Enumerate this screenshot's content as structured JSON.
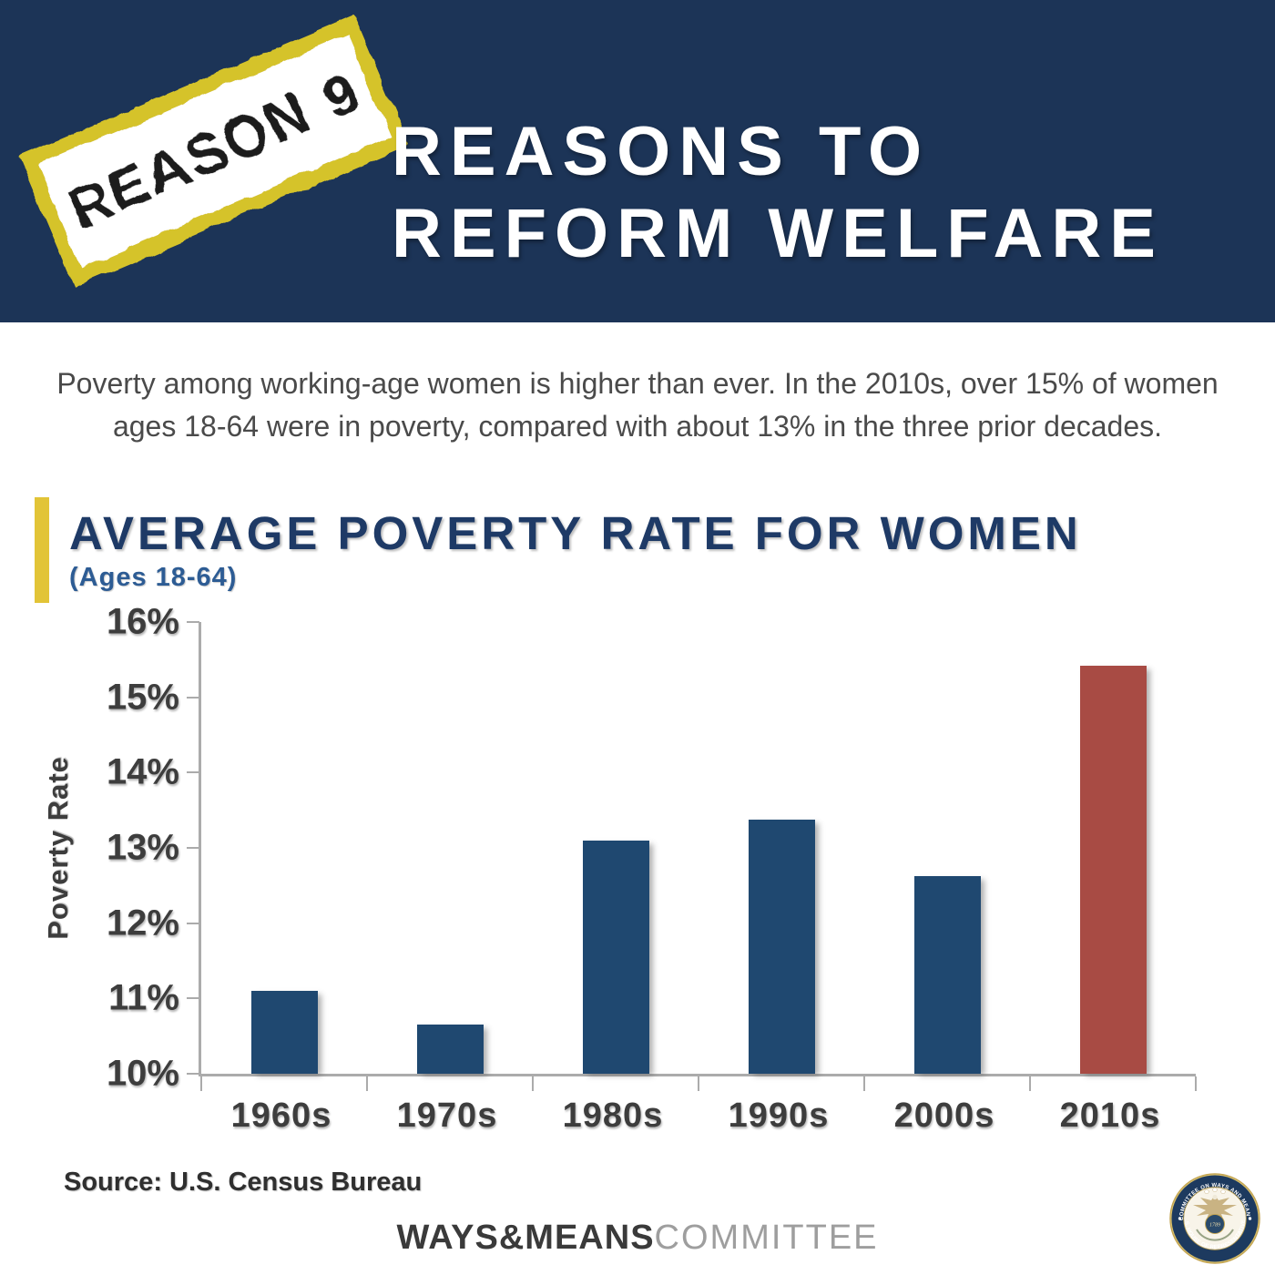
{
  "header": {
    "stamp_text": "REASON 9",
    "title_line1": "REASONS TO",
    "title_line2": "REFORM WELFARE"
  },
  "intro": {
    "text": "Poverty among working-age women is higher than ever. In the 2010s, over 15% of women ages 18-64 were in poverty, compared with about 13% in the three prior decades."
  },
  "chart": {
    "title": "AVERAGE POVERTY RATE FOR WOMEN",
    "subtitle": "(Ages 18-64)",
    "source": "Source: U.S. Census Bureau"
  },
  "chart_data": {
    "type": "bar",
    "title": "AVERAGE POVERTY RATE FOR WOMEN (Ages 18-64)",
    "categories": [
      "1960s",
      "1970s",
      "1980s",
      "1990s",
      "2000s",
      "2010s"
    ],
    "values": [
      11.1,
      10.65,
      13.1,
      13.37,
      12.62,
      15.42
    ],
    "xlabel": "",
    "ylabel": "Poverty Rate",
    "ylim": [
      10,
      16
    ],
    "yticks": [
      "16%",
      "15%",
      "14%",
      "13%",
      "12%",
      "11%",
      "10%"
    ],
    "grid": false,
    "legend": false,
    "highlight_category": "2010s",
    "bar_color": "#1F4870",
    "highlight_color": "#A84B44"
  },
  "footer": {
    "brand_bold": "WAYS&MEANS",
    "brand_light": "COMMITTEE",
    "seal": {
      "top_text": "COMMITTEE ON WAYS AND MEANS",
      "bottom_text": "U.S. HOUSE OF REPRESENTATIVES",
      "year": "1789"
    }
  },
  "colors": {
    "header_navy": "#1C3457",
    "title_navy": "#1E3A66",
    "subtitle_blue": "#2D5C94",
    "accent_yellow": "#E2C437",
    "stamp_yellow": "#D5C32B",
    "bar_navy": "#1F4870",
    "bar_red": "#A84B44",
    "text_gray": "#4A4A4A",
    "axis_gray": "#ABABAB",
    "label_dark": "#3D3D3D"
  }
}
